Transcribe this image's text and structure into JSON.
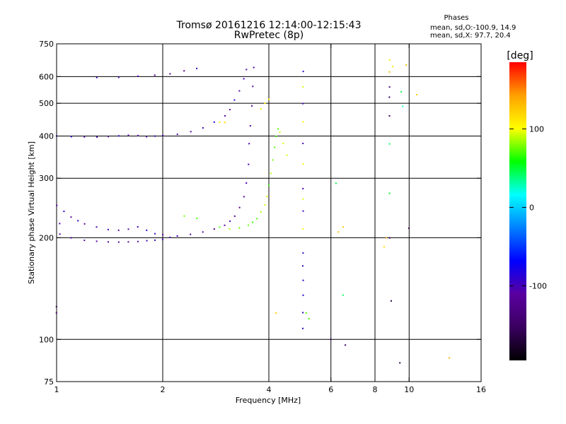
{
  "header": {
    "title_line1": "Tromsø 20161216 12:14:00-12:15:43",
    "title_line2": "RwPretec (8p)"
  },
  "phase_box": {
    "title": "Phases",
    "line1": "mean, sd,O:-100.9, 14.9",
    "line2": "mean, sd,X:  97.7, 20.4"
  },
  "colorbar": {
    "unit_label": "[deg]",
    "ticks": [
      {
        "value": 100,
        "label": "100"
      },
      {
        "value": 0,
        "label": "0"
      },
      {
        "value": -100,
        "label": "-100"
      }
    ],
    "range": [
      -195,
      185
    ],
    "colors": [
      "#000000",
      "#3a0060",
      "#5a00a0",
      "#0000ff",
      "#0080ff",
      "#00ffff",
      "#00ff00",
      "#ffff00",
      "#ffa000",
      "#ff0000"
    ]
  },
  "chart_data": {
    "type": "scatter",
    "title": "Tromsø 20161216 12:14:00-12:15:43",
    "subtitle": "RwPretec (8p)",
    "xlabel": "Frequency [MHz]",
    "ylabel": "Stationary phase Virtual Height [km]",
    "x_scale": "log",
    "y_scale": "log",
    "xlim": [
      1,
      16
    ],
    "ylim": [
      75,
      750
    ],
    "x_ticks": [
      1,
      2,
      4,
      6,
      8,
      10,
      16
    ],
    "x_tick_labels": [
      "1",
      "2",
      "4",
      "6",
      "8",
      "10",
      "16"
    ],
    "y_ticks": [
      75,
      100,
      200,
      300,
      400,
      500,
      600,
      750
    ],
    "y_tick_labels": [
      "75",
      "100",
      "200",
      "300",
      "400",
      "500",
      "600",
      "750"
    ],
    "grid": true,
    "grid_x": [
      2,
      4,
      6,
      8,
      10
    ],
    "grid_y": [
      100,
      200,
      300,
      400,
      500,
      600
    ],
    "traces": [
      {
        "name": "",
        "phase_deg": -110,
        "points": [
          [
            1.02,
            205
          ],
          [
            1.1,
            200
          ],
          [
            1.2,
            197
          ],
          [
            1.3,
            195
          ],
          [
            1.4,
            194
          ],
          [
            1.5,
            194
          ],
          [
            1.6,
            194
          ],
          [
            1.7,
            195
          ],
          [
            1.8,
            196
          ],
          [
            1.9,
            197
          ],
          [
            2.0,
            198
          ],
          [
            2.1,
            200
          ],
          [
            2.2,
            202
          ],
          [
            2.4,
            205
          ],
          [
            2.6,
            208
          ],
          [
            2.8,
            212
          ],
          [
            3.0,
            218
          ],
          [
            3.1,
            224
          ],
          [
            3.2,
            232
          ],
          [
            3.3,
            245
          ],
          [
            3.4,
            265
          ],
          [
            3.45,
            290
          ],
          [
            3.5,
            330
          ],
          [
            3.52,
            380
          ],
          [
            3.55,
            430
          ],
          [
            3.58,
            490
          ],
          [
            3.6,
            560
          ],
          [
            3.62,
            640
          ]
        ]
      },
      {
        "name": "",
        "phase_deg": -105,
        "points": [
          [
            1.0,
            250
          ],
          [
            1.02,
            220
          ],
          [
            1.05,
            240
          ],
          [
            1.1,
            230
          ],
          [
            1.15,
            225
          ],
          [
            1.2,
            220
          ],
          [
            1.3,
            215
          ],
          [
            1.4,
            212
          ],
          [
            1.5,
            210
          ],
          [
            1.6,
            212
          ],
          [
            1.7,
            215
          ],
          [
            1.8,
            210
          ],
          [
            1.9,
            206
          ],
          [
            2.0,
            204
          ]
        ]
      },
      {
        "name": "",
        "phase_deg": -100,
        "points": [
          [
            1.0,
            400
          ],
          [
            1.1,
            398
          ],
          [
            1.2,
            397
          ],
          [
            1.3,
            398
          ],
          [
            1.4,
            399
          ],
          [
            1.5,
            400
          ],
          [
            1.6,
            402
          ],
          [
            1.7,
            401
          ],
          [
            1.8,
            399
          ],
          [
            1.9,
            400
          ],
          [
            2.0,
            402
          ],
          [
            2.2,
            405
          ],
          [
            2.4,
            412
          ],
          [
            2.6,
            422
          ],
          [
            2.8,
            440
          ],
          [
            3.0,
            460
          ],
          [
            3.1,
            480
          ],
          [
            3.2,
            510
          ],
          [
            3.3,
            545
          ],
          [
            3.4,
            590
          ],
          [
            3.45,
            630
          ]
        ]
      },
      {
        "name": "",
        "phase_deg": -108,
        "points": [
          [
            1.3,
            595
          ],
          [
            1.5,
            597
          ],
          [
            1.7,
            600
          ],
          [
            1.9,
            605
          ],
          [
            2.1,
            612
          ],
          [
            2.3,
            622
          ],
          [
            2.5,
            635
          ]
        ]
      },
      {
        "name": "",
        "phase_deg": 80,
        "points": [
          [
            2.3,
            232
          ],
          [
            2.5,
            228
          ],
          [
            2.9,
            215
          ],
          [
            3.1,
            212
          ],
          [
            3.3,
            214
          ],
          [
            3.5,
            218
          ],
          [
            3.6,
            222
          ],
          [
            3.7,
            228
          ],
          [
            3.8,
            238
          ],
          [
            3.9,
            250
          ],
          [
            3.95,
            265
          ],
          [
            4.0,
            285
          ],
          [
            4.05,
            310
          ],
          [
            4.1,
            340
          ],
          [
            4.15,
            370
          ],
          [
            4.2,
            400
          ],
          [
            4.25,
            420
          ],
          [
            4.3,
            410
          ],
          [
            4.4,
            380
          ],
          [
            4.5,
            350
          ]
        ]
      },
      {
        "name": "",
        "phase_deg": 105,
        "points": [
          [
            2.9,
            440
          ],
          [
            3.0,
            438
          ],
          [
            3.8,
            480
          ],
          [
            3.9,
            500
          ],
          [
            4.0,
            515
          ]
        ]
      },
      {
        "name": "",
        "phase_deg": -90,
        "points": [
          [
            5.0,
            620
          ],
          [
            5.0,
            500
          ],
          [
            5.0,
            380
          ],
          [
            5.0,
            280
          ],
          [
            5.0,
            240
          ],
          [
            5.0,
            180
          ],
          [
            5.0,
            165
          ],
          [
            5.0,
            150
          ],
          [
            5.0,
            135
          ],
          [
            5.0,
            120
          ],
          [
            5.0,
            108
          ]
        ]
      },
      {
        "name": "",
        "phase_deg": 95,
        "points": [
          [
            5.0,
            560
          ],
          [
            5.0,
            440
          ],
          [
            5.0,
            330
          ],
          [
            5.0,
            260
          ],
          [
            5.0,
            212
          ]
        ]
      },
      {
        "name": "",
        "phase_deg": 60,
        "points": [
          [
            6.2,
            290
          ],
          [
            5.1,
            120
          ],
          [
            5.2,
            115
          ]
        ]
      },
      {
        "name": "",
        "phase_deg": 40,
        "points": [
          [
            8.8,
            380
          ],
          [
            8.8,
            270
          ],
          [
            9.5,
            540
          ],
          [
            9.6,
            490
          ],
          [
            6.5,
            135
          ]
        ]
      },
      {
        "name": "",
        "phase_deg": 130,
        "points": [
          [
            6.5,
            215
          ],
          [
            6.3,
            208
          ],
          [
            8.6,
            200
          ],
          [
            8.5,
            188
          ],
          [
            10.5,
            530
          ],
          [
            13.0,
            88
          ],
          [
            4.2,
            120
          ]
        ]
      },
      {
        "name": "",
        "phase_deg": 120,
        "points": [
          [
            8.8,
            670
          ],
          [
            9.0,
            640
          ],
          [
            9.8,
            650
          ],
          [
            8.8,
            620
          ]
        ]
      },
      {
        "name": "",
        "phase_deg": -150,
        "points": [
          [
            8.8,
            560
          ],
          [
            8.8,
            520
          ],
          [
            8.8,
            460
          ],
          [
            8.8,
            200
          ],
          [
            8.9,
            130
          ],
          [
            10.0,
            213
          ],
          [
            6.0,
            100
          ],
          [
            6.6,
            96
          ],
          [
            9.4,
            85
          ],
          [
            1.0,
            125
          ],
          [
            1.0,
            120
          ]
        ]
      }
    ]
  }
}
